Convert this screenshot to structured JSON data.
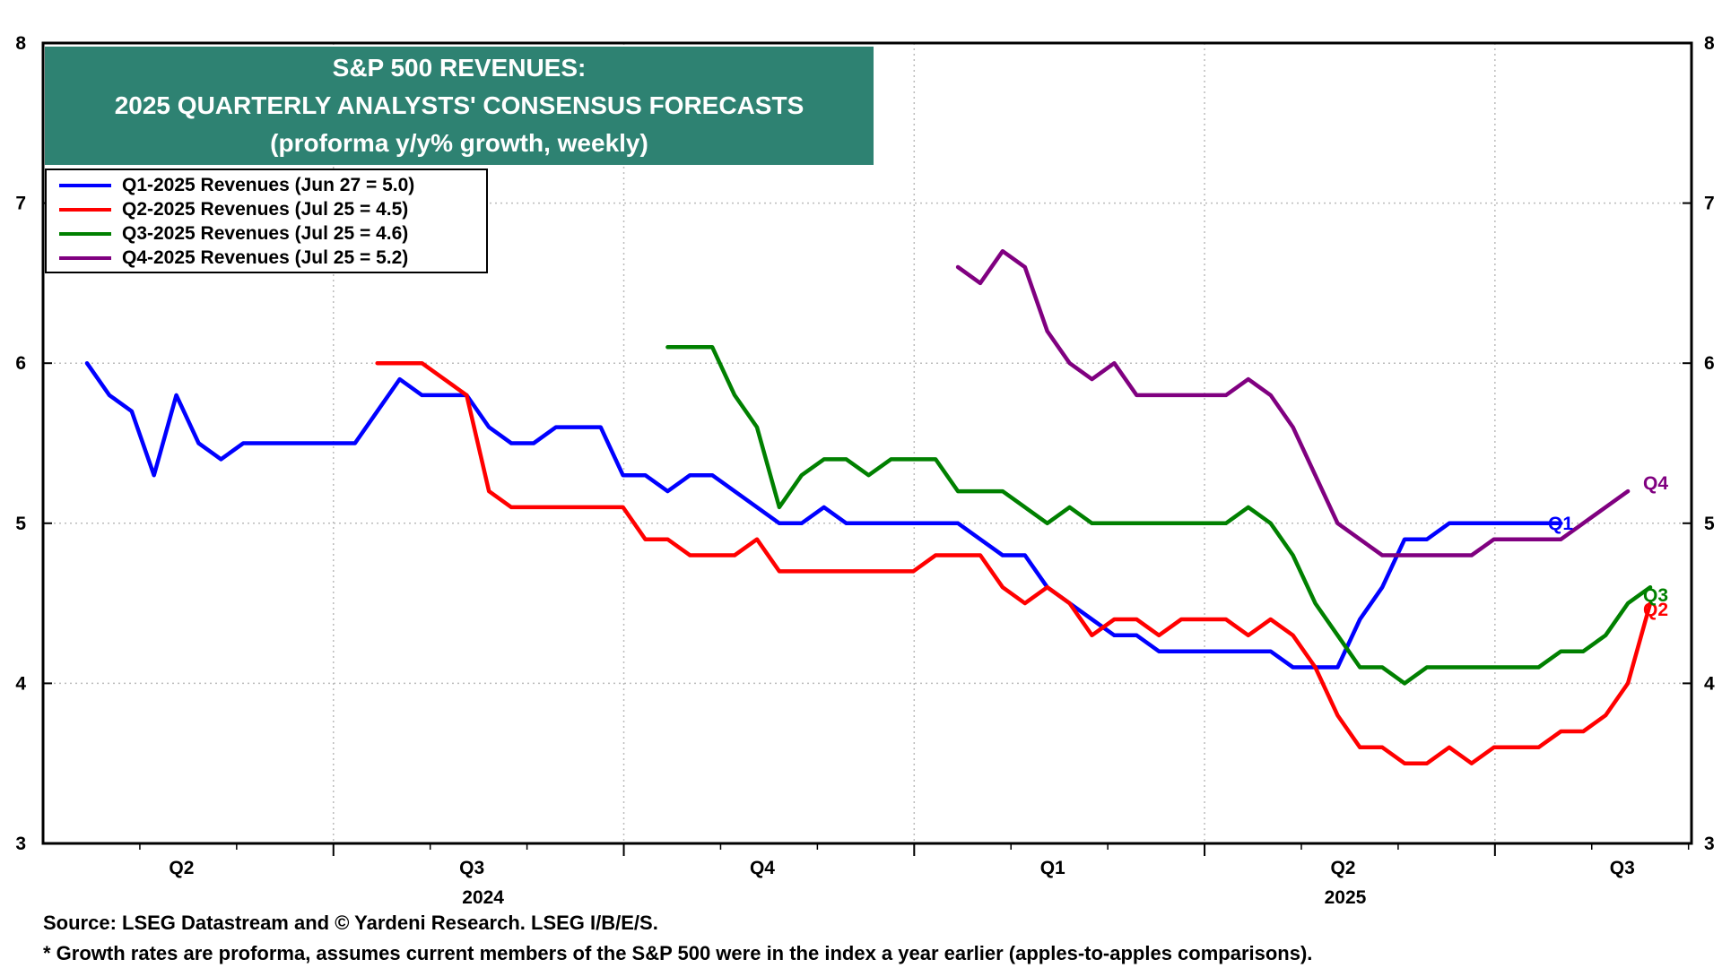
{
  "title_lines": [
    "S&P 500 REVENUES:",
    "2025 QUARTERLY ANALYSTS' CONSENSUS FORECASTS",
    "(proforma y/y% growth, weekly)"
  ],
  "footnotes": {
    "source": "Source: LSEG Datastream and © Yardeni Research. LSEG I/B/E/S.",
    "note": "* Growth rates are proforma, assumes current members of the S&P 500 were in the index a year earlier (apples-to-apples comparisons)."
  },
  "colors": {
    "Q1": "#0000ff",
    "Q2": "#ff0000",
    "Q3": "#008000",
    "Q4": "#800080",
    "title_bg": "#2e8272",
    "grid": "#bbbbbb"
  },
  "chart_data": {
    "type": "line",
    "title": "S&P 500 REVENUES: 2025 QUARTERLY ANALYSTS' CONSENSUS FORECASTS (proforma y/y% growth, weekly)",
    "ylim": [
      3,
      8
    ],
    "y_ticks": [
      "3",
      "4",
      "5",
      "6",
      "7",
      "8"
    ],
    "x_quarter_labels": [
      "Q2",
      "Q3",
      "Q4",
      "Q1",
      "Q2",
      "Q3"
    ],
    "x_year_labels": [
      "2024",
      "2025"
    ],
    "legend_position": "top-left",
    "grid": true,
    "week_start_label": "Q2 2024",
    "series": [
      {
        "key": "Q1",
        "name": "Q1-2025 Revenues (Jun 27 = 5.0)",
        "end_label": "Q1",
        "start_week": 0,
        "values": [
          6.0,
          5.8,
          5.7,
          5.3,
          5.8,
          5.5,
          5.4,
          5.5,
          5.5,
          5.5,
          5.5,
          5.5,
          5.5,
          5.7,
          5.9,
          5.8,
          5.8,
          5.8,
          5.6,
          5.5,
          5.5,
          5.6,
          5.6,
          5.6,
          5.3,
          5.3,
          5.2,
          5.3,
          5.3,
          5.2,
          5.1,
          5.0,
          5.0,
          5.1,
          5.0,
          5.0,
          5.0,
          5.0,
          5.0,
          5.0,
          4.9,
          4.8,
          4.8,
          4.6,
          4.5,
          4.4,
          4.3,
          4.3,
          4.2,
          4.2,
          4.2,
          4.2,
          4.2,
          4.2,
          4.1,
          4.1,
          4.1,
          4.4,
          4.6,
          4.9,
          4.9,
          5.0,
          5.0,
          5.0,
          5.0,
          5.0,
          5.0
        ]
      },
      {
        "key": "Q2",
        "name": "Q2-2025 Revenues (Jul 25 = 4.5)",
        "end_label": "Q2",
        "start_week": 13,
        "values": [
          6.0,
          6.0,
          6.0,
          5.9,
          5.8,
          5.2,
          5.1,
          5.1,
          5.1,
          5.1,
          5.1,
          5.1,
          4.9,
          4.9,
          4.8,
          4.8,
          4.8,
          4.9,
          4.7,
          4.7,
          4.7,
          4.7,
          4.7,
          4.7,
          4.7,
          4.8,
          4.8,
          4.8,
          4.6,
          4.5,
          4.6,
          4.5,
          4.3,
          4.4,
          4.4,
          4.3,
          4.4,
          4.4,
          4.4,
          4.3,
          4.4,
          4.3,
          4.1,
          3.8,
          3.6,
          3.6,
          3.5,
          3.5,
          3.6,
          3.5,
          3.6,
          3.6,
          3.6,
          3.7,
          3.7,
          3.8,
          4.0,
          4.5
        ]
      },
      {
        "key": "Q3",
        "name": "Q3-2025 Revenues (Jul 25 = 4.6)",
        "end_label": "Q3",
        "start_week": 26,
        "values": [
          6.1,
          6.1,
          6.1,
          5.8,
          5.6,
          5.1,
          5.3,
          5.4,
          5.4,
          5.3,
          5.4,
          5.4,
          5.4,
          5.2,
          5.2,
          5.2,
          5.1,
          5.0,
          5.1,
          5.0,
          5.0,
          5.0,
          5.0,
          5.0,
          5.0,
          5.0,
          5.1,
          5.0,
          4.8,
          4.5,
          4.3,
          4.1,
          4.1,
          4.0,
          4.1,
          4.1,
          4.1,
          4.1,
          4.1,
          4.1,
          4.2,
          4.2,
          4.3,
          4.5,
          4.6
        ]
      },
      {
        "key": "Q4",
        "name": "Q4-2025 Revenues (Jul 25 = 5.2)",
        "end_label": "Q4",
        "start_week": 39,
        "values": [
          6.6,
          6.5,
          6.7,
          6.6,
          6.2,
          6.0,
          5.9,
          6.0,
          5.8,
          5.8,
          5.8,
          5.8,
          5.8,
          5.9,
          5.8,
          5.6,
          5.3,
          5.0,
          4.9,
          4.8,
          4.8,
          4.8,
          4.8,
          4.8,
          4.9,
          4.9,
          4.9,
          4.9,
          5.0,
          5.1,
          5.2
        ]
      }
    ]
  }
}
